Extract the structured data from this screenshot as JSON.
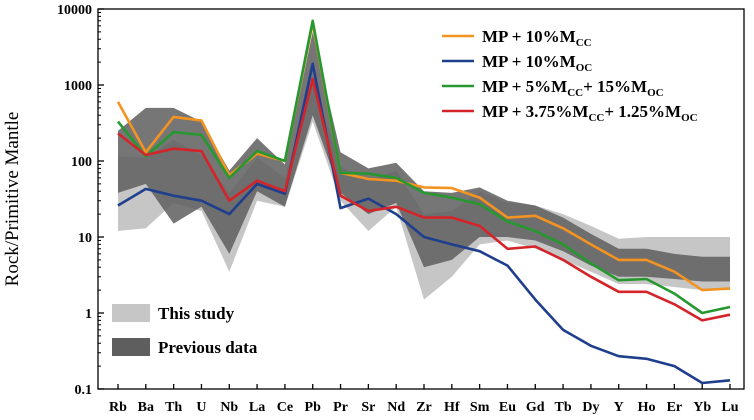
{
  "chart_data": {
    "type": "line",
    "ylabel": "Rock/Primitive Mantle",
    "xlabel": "",
    "yscale": "log",
    "ylim": [
      0.1,
      10000
    ],
    "yticks": [
      {
        "value": 0.1,
        "label": "0.1"
      },
      {
        "value": 1,
        "label": "1"
      },
      {
        "value": 10,
        "label": "10"
      },
      {
        "value": 100,
        "label": "100"
      },
      {
        "value": 1000,
        "label": "1000"
      },
      {
        "value": 10000,
        "label": "10000"
      }
    ],
    "categories": [
      "Rb",
      "Ba",
      "Th",
      "U",
      "Nb",
      "La",
      "Ce",
      "Pb",
      "Pr",
      "Sr",
      "Nd",
      "Zr",
      "Hf",
      "Sm",
      "Eu",
      "Gd",
      "Tb",
      "Dy",
      "Y",
      "Ho",
      "Er",
      "Yb",
      "Lu"
    ],
    "bands": [
      {
        "name": "This study",
        "color": "#c6c6c6",
        "upper": [
          115,
          110,
          190,
          120,
          38,
          110,
          60,
          1200,
          85,
          55,
          75,
          20,
          22,
          40,
          28,
          26,
          20,
          14,
          9.5,
          10,
          10,
          10,
          10
        ],
        "lower": [
          12,
          13,
          28,
          22,
          3.5,
          30,
          25,
          330,
          30,
          12,
          25,
          1.5,
          3,
          8,
          9,
          7,
          5,
          3.5,
          2.4,
          2.4,
          2.2,
          2,
          2
        ]
      },
      {
        "name": "Previous data",
        "color": "#5e5e5e",
        "upper": [
          250,
          500,
          500,
          330,
          75,
          200,
          90,
          5000,
          130,
          80,
          95,
          40,
          38,
          45,
          30,
          26,
          18,
          11,
          7,
          7,
          6,
          5.5,
          5.5
        ],
        "lower": [
          38,
          50,
          15,
          25,
          6,
          40,
          25,
          400,
          38,
          20,
          28,
          4,
          5,
          10,
          10,
          9,
          6.5,
          4.2,
          3,
          3,
          2.8,
          2.6,
          2.6
        ]
      }
    ],
    "series": [
      {
        "name": "MP + 10%M_CC",
        "legend_main": "MP + 10%M",
        "legend_sub": "CC",
        "color": "#f39321",
        "values": [
          600,
          130,
          380,
          340,
          65,
          125,
          100,
          6500,
          70,
          58,
          55,
          45,
          44,
          33,
          18,
          19,
          13,
          8,
          5,
          5,
          3.5,
          2,
          2.1
        ]
      },
      {
        "name": "MP + 10%M_OC",
        "legend_main": "MP + 10%M",
        "legend_sub": "OC",
        "color": "#1f3f8c",
        "values": [
          26,
          43,
          35,
          30,
          20,
          50,
          37,
          1900,
          24,
          32,
          20,
          10,
          8,
          6.5,
          4.2,
          1.5,
          0.6,
          0.37,
          0.27,
          0.25,
          0.2,
          0.12,
          0.13
        ]
      },
      {
        "name": "MP + 5%M_CC + 15%M_OC",
        "legend_main": "MP + 5%M",
        "legend_sub": "CC",
        "legend_main2": "+ 15%M",
        "legend_sub2": "OC",
        "color": "#279830",
        "values": [
          330,
          115,
          240,
          220,
          60,
          135,
          100,
          7000,
          70,
          68,
          60,
          38,
          33,
          27,
          16,
          12,
          8,
          4.5,
          2.7,
          2.8,
          1.8,
          1,
          1.2
        ]
      },
      {
        "name": "MP + 3.75%M_CC + 1.25%M_OC",
        "legend_main": "MP + 3.75%M",
        "legend_sub": "CC",
        "legend_main2": "+ 1.25%M",
        "legend_sub2": "OC",
        "color": "#d4242a",
        "values": [
          230,
          120,
          145,
          135,
          30,
          55,
          40,
          1200,
          35,
          22,
          25,
          18,
          18,
          14,
          7,
          7.5,
          5,
          3,
          1.9,
          1.9,
          1.3,
          0.8,
          0.95
        ]
      }
    ],
    "legend_position": "top-right",
    "band_legend_position": "bottom-left"
  }
}
